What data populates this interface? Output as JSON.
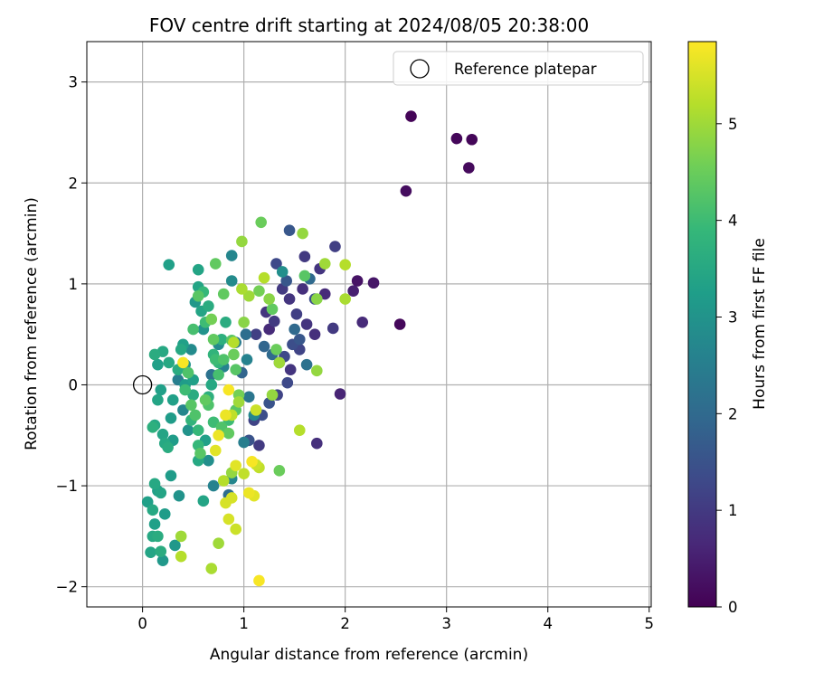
{
  "chart_data": {
    "type": "scatter",
    "title": "FOV centre drift starting at 2024/08/05 20:38:00",
    "xlabel": "Angular distance from reference (arcmin)",
    "ylabel": "Rotation from reference (arcmin)",
    "xlim": [
      -0.55,
      5.02
    ],
    "ylim": [
      -2.2,
      3.4
    ],
    "x_ticks": [
      0,
      1,
      2,
      3,
      4,
      5
    ],
    "y_ticks": [
      -2,
      -1,
      0,
      1,
      2,
      3
    ],
    "x_tick_labels": [
      "0",
      "1",
      "2",
      "3",
      "4",
      "5"
    ],
    "y_tick_labels": [
      "−2",
      "−1",
      "0",
      "1",
      "2",
      "3"
    ],
    "grid": true,
    "legend": {
      "position": "top-right",
      "label": "Reference platepar"
    },
    "reference_point": {
      "x": 0,
      "y": 0
    },
    "colorbar": {
      "label": "Hours from first FF file",
      "range": [
        0,
        5.85
      ],
      "ticks": [
        0,
        1,
        2,
        3,
        4,
        5
      ],
      "tick_labels": [
        "0",
        "1",
        "2",
        "3",
        "4",
        "5"
      ],
      "colormap": "viridis"
    },
    "colormap_stops": [
      "#440154",
      "#482878",
      "#3e4989",
      "#31688e",
      "#26828e",
      "#1f9e89",
      "#35b779",
      "#6ece58",
      "#b5de2b",
      "#fde725"
    ],
    "points": [
      [
        2.65,
        2.66,
        0.05
      ],
      [
        3.1,
        2.44,
        0.1
      ],
      [
        3.25,
        2.43,
        0.08
      ],
      [
        3.22,
        2.15,
        0.15
      ],
      [
        2.6,
        1.92,
        0.2
      ],
      [
        2.54,
        0.6,
        0.12
      ],
      [
        2.12,
        1.03,
        0.3
      ],
      [
        2.28,
        1.01,
        0.35
      ],
      [
        2.08,
        0.93,
        0.5
      ],
      [
        2.17,
        0.62,
        0.7
      ],
      [
        1.95,
        -0.09,
        0.6
      ],
      [
        1.72,
        -0.58,
        0.8
      ],
      [
        1.9,
        1.37,
        1.1
      ],
      [
        1.6,
        1.27,
        1.0
      ],
      [
        1.75,
        1.15,
        0.9
      ],
      [
        1.88,
        0.56,
        1.0
      ],
      [
        1.62,
        0.6,
        0.9
      ],
      [
        1.7,
        0.5,
        0.8
      ],
      [
        1.8,
        0.9,
        0.7
      ],
      [
        1.55,
        0.35,
        1.2
      ],
      [
        1.45,
        0.85,
        0.9
      ],
      [
        1.38,
        0.95,
        1.0
      ],
      [
        1.32,
        1.2,
        1.3
      ],
      [
        1.42,
        1.03,
        1.6
      ],
      [
        1.48,
        0.4,
        1.4
      ],
      [
        1.52,
        0.7,
        1.1
      ],
      [
        1.58,
        0.95,
        0.8
      ],
      [
        1.22,
        0.72,
        0.9
      ],
      [
        1.3,
        0.63,
        1.0
      ],
      [
        1.25,
        0.55,
        0.7
      ],
      [
        1.4,
        0.28,
        1.3
      ],
      [
        1.46,
        0.15,
        0.9
      ],
      [
        1.33,
        -0.1,
        1.2
      ],
      [
        1.25,
        -0.18,
        1.5
      ],
      [
        1.18,
        -0.3,
        1.4
      ],
      [
        1.1,
        -0.35,
        1.2
      ],
      [
        1.15,
        -0.6,
        1.0
      ],
      [
        1.05,
        -0.55,
        1.5
      ],
      [
        1.43,
        0.02,
        1.3
      ],
      [
        1.5,
        0.55,
        2.0
      ],
      [
        1.55,
        0.45,
        1.6
      ],
      [
        1.62,
        0.2,
        2.2
      ],
      [
        1.35,
        0.22,
        1.7
      ],
      [
        1.28,
        0.3,
        2.0
      ],
      [
        1.2,
        0.38,
        1.9
      ],
      [
        1.12,
        0.5,
        1.1
      ],
      [
        1.03,
        0.25,
        2.6
      ],
      [
        0.98,
        0.12,
        1.9
      ],
      [
        0.92,
        0.42,
        2.4
      ],
      [
        0.88,
        1.28,
        2.7
      ],
      [
        0.88,
        1.03,
        2.8
      ],
      [
        1.45,
        1.53,
        1.6
      ],
      [
        1.65,
        1.05,
        2.0
      ],
      [
        1.7,
        0.85,
        1.4
      ],
      [
        1.38,
        1.12,
        2.9
      ],
      [
        1.05,
        -0.12,
        2.3
      ],
      [
        1.1,
        -0.3,
        2.7
      ],
      [
        1.02,
        0.5,
        2.1
      ],
      [
        1.0,
        -0.57,
        2.5
      ],
      [
        0.88,
        -0.93,
        2.7
      ],
      [
        0.85,
        -1.09,
        2.1
      ],
      [
        0.75,
        0.4,
        2.8
      ],
      [
        0.8,
        0.18,
        2.6
      ],
      [
        0.65,
        -0.75,
        2.9
      ],
      [
        0.7,
        -1.0,
        2.6
      ],
      [
        0.68,
        0.1,
        2.2
      ],
      [
        0.6,
        0.55,
        3.0
      ],
      [
        0.52,
        0.82,
        3.1
      ],
      [
        0.45,
        -0.45,
        3.0
      ],
      [
        0.4,
        -0.25,
        2.7
      ],
      [
        0.35,
        0.05,
        2.5
      ],
      [
        0.42,
        0.2,
        3.0
      ],
      [
        0.48,
        0.35,
        2.8
      ],
      [
        0.3,
        -0.55,
        3.2
      ],
      [
        0.28,
        -0.9,
        3.2
      ],
      [
        0.22,
        -1.28,
        3.2
      ],
      [
        0.2,
        -1.74,
        3.1
      ],
      [
        0.32,
        -1.59,
        3.1
      ],
      [
        0.36,
        -1.1,
        3.0
      ],
      [
        0.15,
        -1.05,
        3.3
      ],
      [
        0.12,
        -1.38,
        3.3
      ],
      [
        0.1,
        -1.5,
        3.5
      ],
      [
        0.05,
        -1.16,
        3.3
      ],
      [
        0.08,
        -1.66,
        3.4
      ],
      [
        0.18,
        -1.65,
        3.6
      ],
      [
        0.15,
        -1.5,
        3.6
      ],
      [
        0.1,
        -1.24,
        3.5
      ],
      [
        0.12,
        -0.98,
        3.5
      ],
      [
        0.18,
        -1.07,
        3.4
      ],
      [
        0.22,
        -0.58,
        3.5
      ],
      [
        0.25,
        -0.62,
        3.6
      ],
      [
        0.2,
        -0.49,
        3.4
      ],
      [
        0.1,
        -0.42,
        3.7
      ],
      [
        0.12,
        -0.4,
        3.5
      ],
      [
        0.15,
        -0.15,
        3.4
      ],
      [
        0.18,
        -0.05,
        3.3
      ],
      [
        0.28,
        -0.33,
        3.2
      ],
      [
        0.3,
        -0.15,
        3.3
      ],
      [
        0.26,
        0.22,
        3.5
      ],
      [
        0.2,
        0.33,
        3.5
      ],
      [
        0.12,
        0.3,
        3.6
      ],
      [
        0.15,
        0.2,
        3.3
      ],
      [
        0.26,
        1.19,
        3.3
      ],
      [
        0.55,
        1.14,
        3.4
      ],
      [
        0.55,
        0.97,
        3.4
      ],
      [
        0.58,
        0.73,
        3.4
      ],
      [
        0.4,
        0.4,
        3.3
      ],
      [
        0.38,
        0.35,
        3.5
      ],
      [
        0.35,
        0.15,
        3.6
      ],
      [
        0.42,
        0.0,
        3.2
      ],
      [
        0.5,
        0.05,
        3.3
      ],
      [
        0.5,
        -0.1,
        3.6
      ],
      [
        0.48,
        -0.35,
        3.8
      ],
      [
        0.55,
        -0.45,
        3.9
      ],
      [
        0.55,
        -0.75,
        3.5
      ],
      [
        0.62,
        -0.55,
        3.3
      ],
      [
        0.6,
        -1.15,
        3.4
      ],
      [
        0.55,
        -0.6,
        3.9
      ],
      [
        0.65,
        -0.12,
        3.7
      ],
      [
        0.68,
        0.0,
        3.5
      ],
      [
        0.7,
        0.3,
        3.8
      ],
      [
        0.75,
        0.22,
        3.8
      ],
      [
        0.78,
        0.45,
        3.7
      ],
      [
        0.82,
        0.62,
        3.6
      ],
      [
        0.6,
        0.92,
        3.9
      ],
      [
        0.65,
        0.78,
        3.6
      ],
      [
        0.72,
        0.25,
        4.0
      ],
      [
        0.75,
        0.1,
        4.1
      ],
      [
        0.8,
        0.25,
        4.2
      ],
      [
        0.85,
        -0.35,
        4.0
      ],
      [
        0.78,
        -0.42,
        4.2
      ],
      [
        0.7,
        -0.37,
        4.0
      ],
      [
        0.62,
        0.62,
        4.0
      ],
      [
        0.55,
        0.88,
        4.3
      ],
      [
        0.5,
        0.55,
        4.1
      ],
      [
        0.42,
        -0.05,
        4.0
      ],
      [
        0.45,
        0.12,
        4.2
      ],
      [
        0.48,
        -0.2,
        4.3
      ],
      [
        0.52,
        -0.3,
        4.2
      ],
      [
        0.57,
        -0.68,
        4.3
      ],
      [
        0.62,
        -0.15,
        4.4
      ],
      [
        0.65,
        -0.2,
        4.2
      ],
      [
        0.68,
        0.65,
        4.6
      ],
      [
        0.7,
        0.45,
        4.4
      ],
      [
        0.72,
        1.2,
        4.4
      ],
      [
        0.8,
        0.9,
        4.4
      ],
      [
        0.88,
        0.44,
        4.3
      ],
      [
        0.9,
        0.3,
        4.5
      ],
      [
        0.92,
        0.15,
        4.3
      ],
      [
        0.95,
        -0.1,
        4.6
      ],
      [
        0.92,
        -0.25,
        4.3
      ],
      [
        0.85,
        -0.48,
        4.4
      ],
      [
        0.88,
        -0.87,
        4.9
      ],
      [
        1.0,
        0.62,
        4.8
      ],
      [
        1.15,
        0.93,
        4.6
      ],
      [
        1.17,
        1.61,
        4.5
      ],
      [
        1.25,
        0.85,
        4.8
      ],
      [
        1.28,
        0.75,
        4.4
      ],
      [
        1.32,
        0.35,
        4.5
      ],
      [
        1.35,
        0.22,
        5.0
      ],
      [
        1.28,
        -0.1,
        4.9
      ],
      [
        1.35,
        -0.85,
        4.5
      ],
      [
        1.6,
        1.08,
        4.3
      ],
      [
        1.58,
        1.5,
        4.9
      ],
      [
        1.72,
        0.85,
        4.8
      ],
      [
        1.8,
        1.2,
        5.0
      ],
      [
        1.72,
        0.14,
        4.9
      ],
      [
        2.0,
        0.85,
        5.1
      ],
      [
        2.0,
        1.19,
        5.2
      ],
      [
        1.2,
        1.06,
        5.2
      ],
      [
        1.05,
        0.88,
        5.0
      ],
      [
        0.98,
        1.42,
        4.9
      ],
      [
        0.98,
        0.95,
        5.1
      ],
      [
        0.9,
        0.42,
        5.2
      ],
      [
        0.95,
        -0.17,
        5.0
      ],
      [
        0.88,
        -0.3,
        5.3
      ],
      [
        0.8,
        -0.95,
        5.2
      ],
      [
        0.75,
        -1.57,
        5.0
      ],
      [
        0.85,
        -1.33,
        5.5
      ],
      [
        0.88,
        -1.12,
        5.5
      ],
      [
        0.92,
        -1.43,
        5.4
      ],
      [
        1.0,
        -0.88,
        5.3
      ],
      [
        1.05,
        -1.07,
        5.7
      ],
      [
        1.1,
        -1.1,
        5.6
      ],
      [
        1.12,
        -0.79,
        5.4
      ],
      [
        1.15,
        -0.82,
        5.3
      ],
      [
        1.08,
        -0.76,
        5.8
      ],
      [
        0.92,
        -0.8,
        5.6
      ],
      [
        0.82,
        -1.17,
        5.5
      ],
      [
        0.72,
        -0.65,
        5.6
      ],
      [
        0.75,
        -0.5,
        5.7
      ],
      [
        0.82,
        -0.3,
        5.7
      ],
      [
        0.85,
        -0.05,
        5.8
      ],
      [
        1.12,
        -0.25,
        5.4
      ],
      [
        0.4,
        0.22,
        5.8
      ],
      [
        0.38,
        -1.5,
        5.0
      ],
      [
        0.38,
        -1.7,
        5.2
      ],
      [
        0.68,
        -1.82,
        5.1
      ],
      [
        1.15,
        -1.94,
        5.8
      ],
      [
        1.55,
        -0.45,
        5.2
      ]
    ]
  }
}
